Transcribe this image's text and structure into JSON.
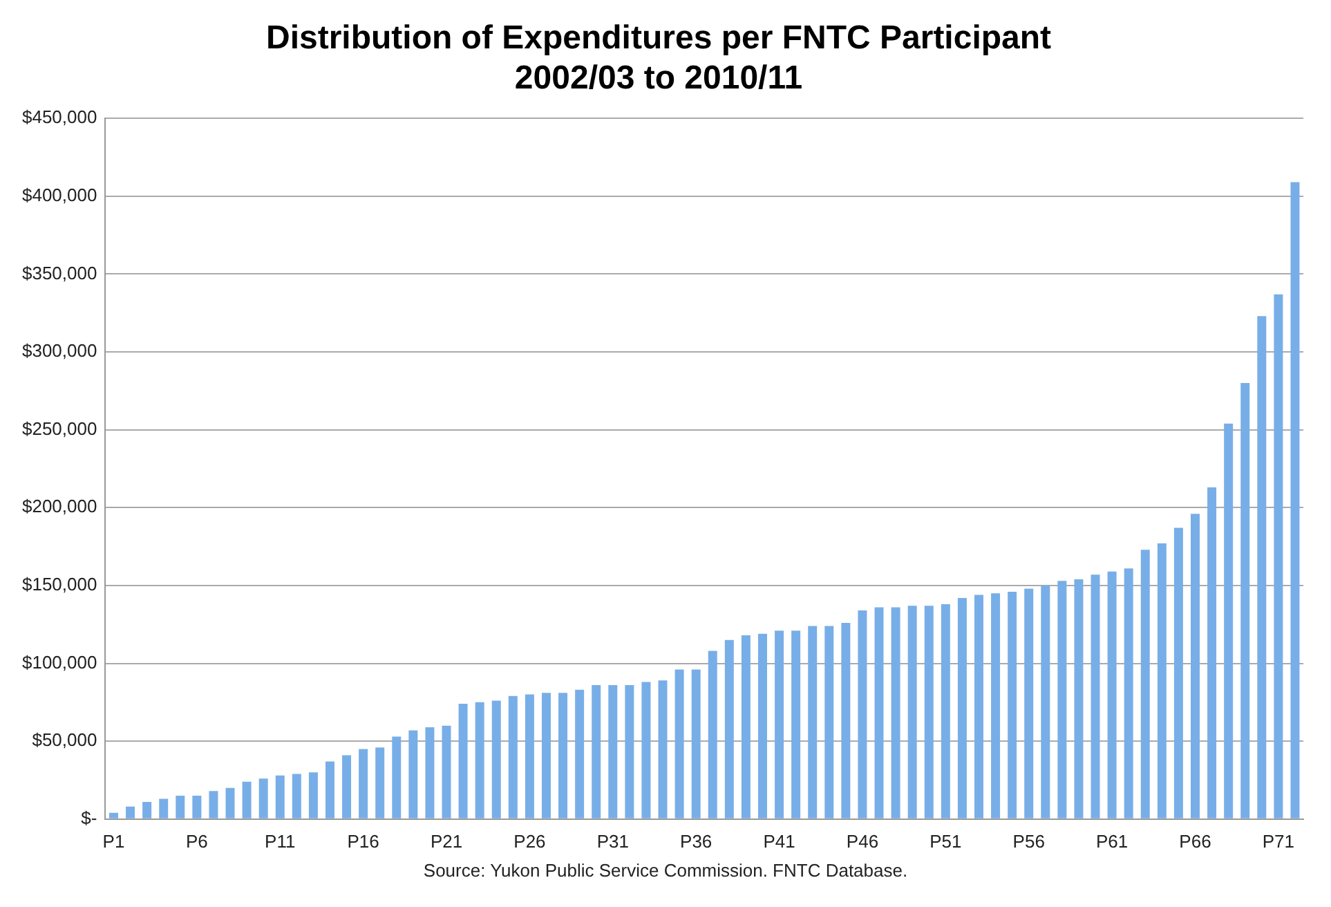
{
  "chart_data": {
    "type": "bar",
    "title": "Distribution of Expenditures per FNTC Participant\n2002/03 to 2010/11",
    "categories": [
      "P1",
      null,
      null,
      null,
      null,
      "P6",
      null,
      null,
      null,
      null,
      "P11",
      null,
      null,
      null,
      null,
      "P16",
      null,
      null,
      null,
      null,
      "P21",
      null,
      null,
      null,
      null,
      "P26",
      null,
      null,
      null,
      null,
      "P31",
      null,
      null,
      null,
      null,
      "P36",
      null,
      null,
      null,
      null,
      "P41",
      null,
      null,
      null,
      null,
      "P46",
      null,
      null,
      null,
      null,
      "P51",
      null,
      null,
      null,
      null,
      "P56",
      null,
      null,
      null,
      null,
      "P61",
      null,
      null,
      null,
      null,
      "P66",
      null,
      null,
      null,
      null,
      "P71",
      null
    ],
    "values": [
      4000,
      8000,
      11000,
      13000,
      15000,
      15000,
      18000,
      20000,
      24000,
      26000,
      28000,
      29000,
      30000,
      37000,
      41000,
      45000,
      46000,
      53000,
      57000,
      59000,
      60000,
      74000,
      75000,
      76000,
      79000,
      80000,
      81000,
      81000,
      83000,
      86000,
      86000,
      86000,
      88000,
      89000,
      96000,
      96000,
      108000,
      115000,
      118000,
      119000,
      121000,
      121000,
      124000,
      124000,
      126000,
      134000,
      136000,
      136000,
      137000,
      137000,
      138000,
      142000,
      144000,
      145000,
      146000,
      148000,
      150000,
      153000,
      154000,
      157000,
      159000,
      161000,
      173000,
      177000,
      187000,
      196000,
      213000,
      254000,
      280000,
      323000,
      337000,
      409000
    ],
    "color": "#78aee8",
    "ylim": [
      0,
      450000
    ],
    "yticks": [
      {
        "value": 0,
        "label": "$-"
      },
      {
        "value": 50000,
        "label": "$50,000"
      },
      {
        "value": 100000,
        "label": "$100,000"
      },
      {
        "value": 150000,
        "label": "$150,000"
      },
      {
        "value": 200000,
        "label": "$200,000"
      },
      {
        "value": 250000,
        "label": "$250,000"
      },
      {
        "value": 300000,
        "label": "$300,000"
      },
      {
        "value": 350000,
        "label": "$350,000"
      },
      {
        "value": 400000,
        "label": "$400,000"
      },
      {
        "value": 450000,
        "label": "$450,000"
      }
    ],
    "grid": "y",
    "annotations": [
      "Source: Yukon Public Service Commission. FNTC Database."
    ]
  }
}
